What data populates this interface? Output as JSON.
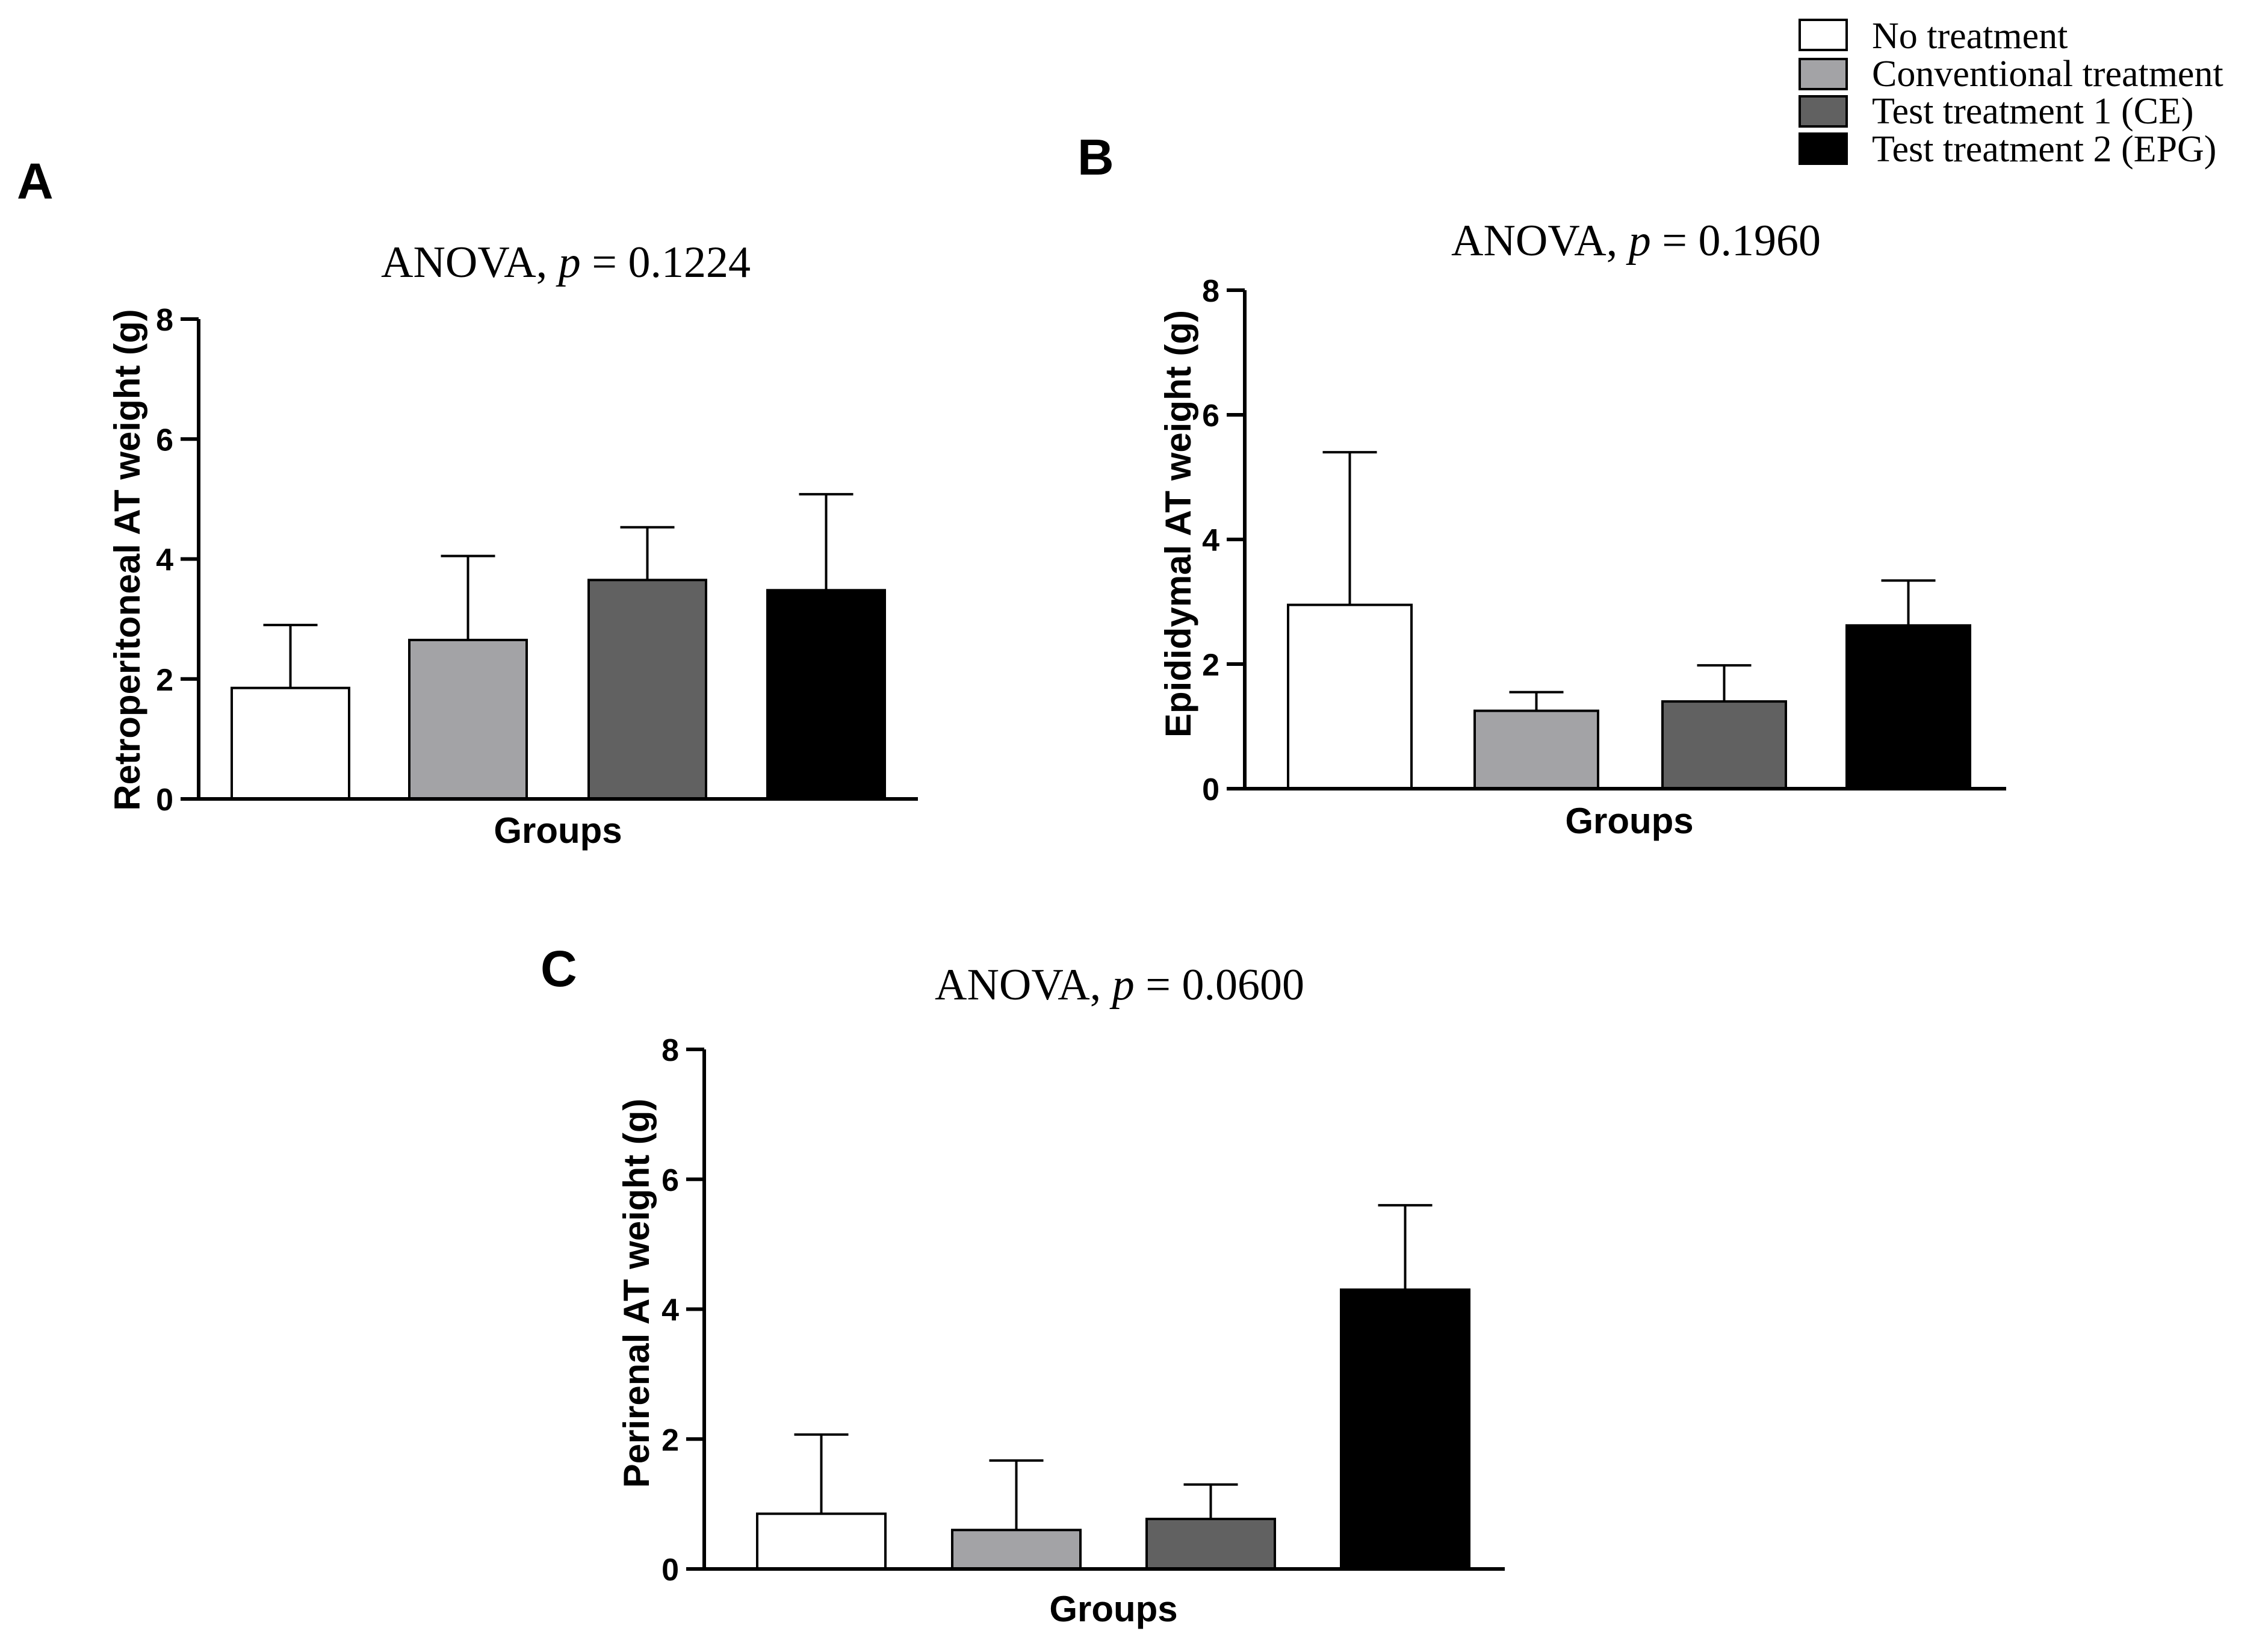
{
  "legend": [
    {
      "label": "No treatment",
      "color": "#ffffff"
    },
    {
      "label": "Conventional treatment",
      "color": "#a3a3a6"
    },
    {
      "label": "Test treatment 1 (CE)",
      "color": "#616161"
    },
    {
      "label": "Test treatment 2 (EPG)",
      "color": "#000000"
    }
  ],
  "chart_data": [
    {
      "type": "bar",
      "panel": "A",
      "title_prefix": "ANOVA, ",
      "title_p": "p",
      "title_value": " = 0.1224",
      "xlabel": "Groups",
      "ylabel": "Retroperitoneal AT weight (g)",
      "ylim": [
        0,
        8
      ],
      "yticks": [
        "0",
        "2",
        "4",
        "6",
        "8"
      ],
      "categories": [
        "No treatment",
        "Conventional treatment",
        "Test treatment 1 (CE)",
        "Test treatment 2 (EPG)"
      ],
      "values": [
        1.85,
        2.65,
        3.65,
        3.48
      ],
      "errors": [
        1.05,
        1.4,
        0.88,
        1.6
      ]
    },
    {
      "type": "bar",
      "panel": "B",
      "title_prefix": "ANOVA, ",
      "title_p": "p",
      "title_value": " = 0.1960",
      "xlabel": "Groups",
      "ylabel": "Epididymal AT weight (g)",
      "ylim": [
        0,
        8
      ],
      "yticks": [
        "0",
        "2",
        "4",
        "6",
        "8"
      ],
      "categories": [
        "No treatment",
        "Conventional treatment",
        "Test treatment 1 (CE)",
        "Test treatment 2 (EPG)"
      ],
      "values": [
        2.95,
        1.25,
        1.4,
        2.62
      ],
      "errors": [
        2.45,
        0.3,
        0.58,
        0.72
      ]
    },
    {
      "type": "bar",
      "panel": "C",
      "title_prefix": "ANOVA, ",
      "title_p": "p",
      "title_value": " = 0.0600",
      "xlabel": "Groups",
      "ylabel": "Perirenal AT weight (g)",
      "ylim": [
        0,
        8
      ],
      "yticks": [
        "0",
        "2",
        "4",
        "6",
        "8"
      ],
      "categories": [
        "No treatment",
        "Conventional treatment",
        "Test treatment 1 (CE)",
        "Test treatment 2 (EPG)"
      ],
      "values": [
        0.85,
        0.6,
        0.77,
        4.3
      ],
      "errors": [
        1.22,
        1.07,
        0.53,
        1.3
      ]
    }
  ]
}
